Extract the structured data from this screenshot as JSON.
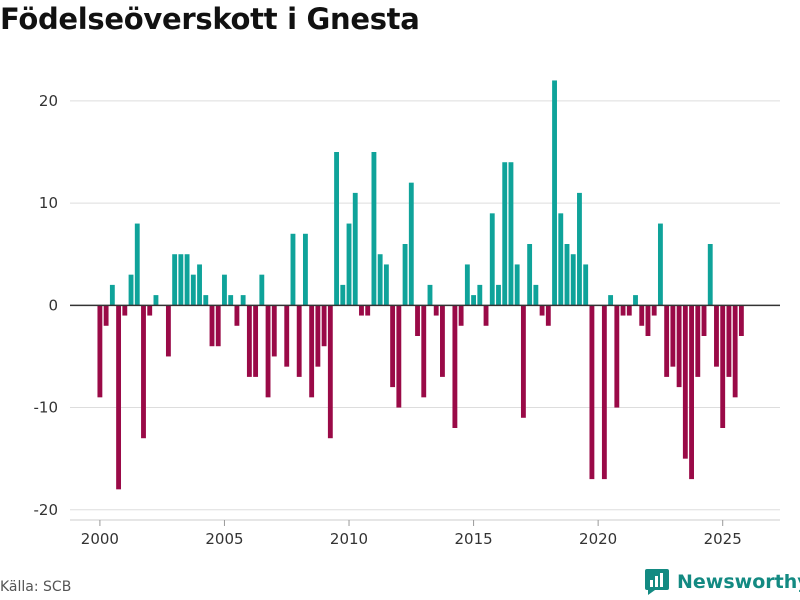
{
  "header": {
    "title": "Födelseöverskott i Gnesta"
  },
  "footer": {
    "source": "Källa: SCB",
    "brand": "Newsworthy"
  },
  "colors": {
    "positive": "#0fa39a",
    "negative": "#9a0a47",
    "grid": "#dddddd",
    "zero_line": "#333333",
    "brand": "#138a82"
  },
  "chart_data": {
    "type": "bar",
    "title": "Födelseöverskott i Gnesta",
    "xlabel": "",
    "ylabel": "",
    "xlim": [
      1998.8,
      2027.3
    ],
    "ylim": [
      -21,
      24
    ],
    "yticks": [
      -20,
      -10,
      0,
      10,
      20
    ],
    "xticks": [
      2000,
      2005,
      2010,
      2015,
      2020,
      2025
    ],
    "grid": true,
    "legend": "none",
    "series": [
      {
        "name": "Födelseöverskott",
        "x_start": 2000.0,
        "x_step": 0.25,
        "values": [
          -9,
          -2,
          2,
          -18,
          -1,
          3,
          8,
          -13,
          -1,
          1,
          0,
          -5,
          5,
          5,
          5,
          3,
          4,
          1,
          -4,
          -4,
          3,
          1,
          -2,
          1,
          -7,
          -7,
          3,
          -9,
          -5,
          0,
          -6,
          7,
          -7,
          7,
          -9,
          -6,
          -4,
          -13,
          15,
          2,
          8,
          11,
          -1,
          -1,
          15,
          5,
          4,
          -8,
          -10,
          6,
          12,
          -3,
          -9,
          2,
          -1,
          -7,
          0,
          -12,
          -2,
          4,
          1,
          2,
          -2,
          9,
          2,
          14,
          14,
          4,
          -11,
          6,
          2,
          -1,
          -2,
          22,
          9,
          6,
          5,
          11,
          4,
          -17,
          0,
          -17,
          1,
          -10,
          -1,
          -1,
          1,
          -2,
          -3,
          -1,
          8,
          -7,
          -6,
          -8,
          -15,
          -17,
          -7,
          -3,
          6,
          -6,
          -12,
          -7,
          -9,
          -3
        ]
      }
    ]
  }
}
